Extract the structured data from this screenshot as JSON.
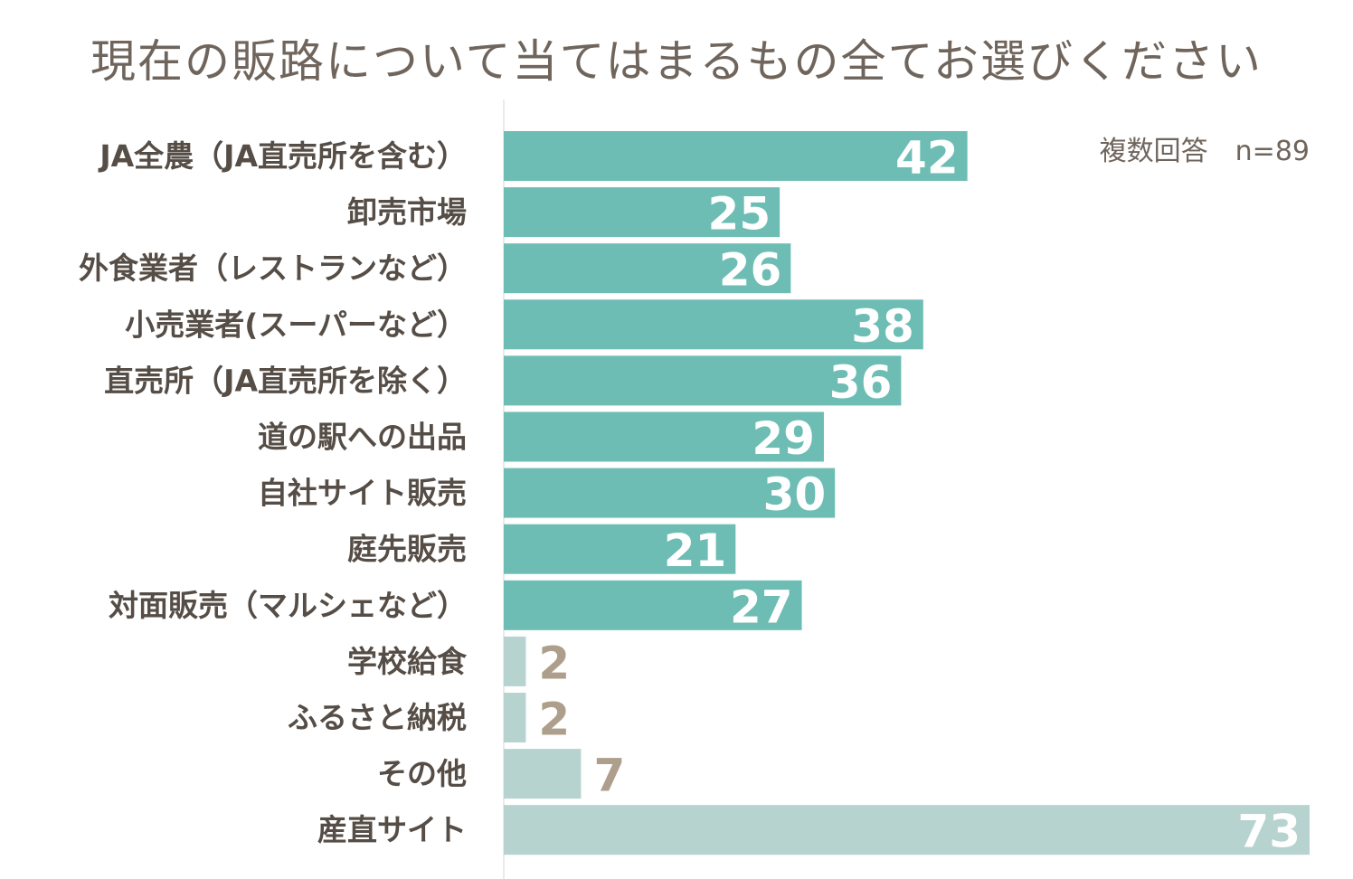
{
  "note": "複数回答　n=89",
  "colors": {
    "primary_bar": "#6dbdb4",
    "secondary_bar": "#b7d3d0",
    "label": "#554d46",
    "outside_value": "#ad9f8c",
    "title": "#6f655c"
  },
  "chart_data": {
    "type": "bar",
    "orientation": "horizontal",
    "title": "現在の販路について当てはまるもの全てお選びください",
    "categories": [
      "JA全農（JA直売所を含む）",
      "卸売市場",
      "外食業者（レストランなど）",
      "小売業者(スーパーなど）",
      "直売所（JA直売所を除く）",
      "道の駅への出品",
      "自社サイト販売",
      "庭先販売",
      "対面販売（マルシェなど）",
      "学校給食",
      "ふるさと納税",
      "その他",
      "産直サイト"
    ],
    "values": [
      42,
      25,
      26,
      38,
      36,
      29,
      30,
      21,
      27,
      2,
      2,
      7,
      73
    ],
    "bar_colors": [
      "primary",
      "primary",
      "primary",
      "primary",
      "primary",
      "primary",
      "primary",
      "primary",
      "primary",
      "secondary",
      "secondary",
      "secondary",
      "secondary"
    ],
    "xlim": [
      0,
      73
    ],
    "grid": false,
    "legend": "none"
  }
}
